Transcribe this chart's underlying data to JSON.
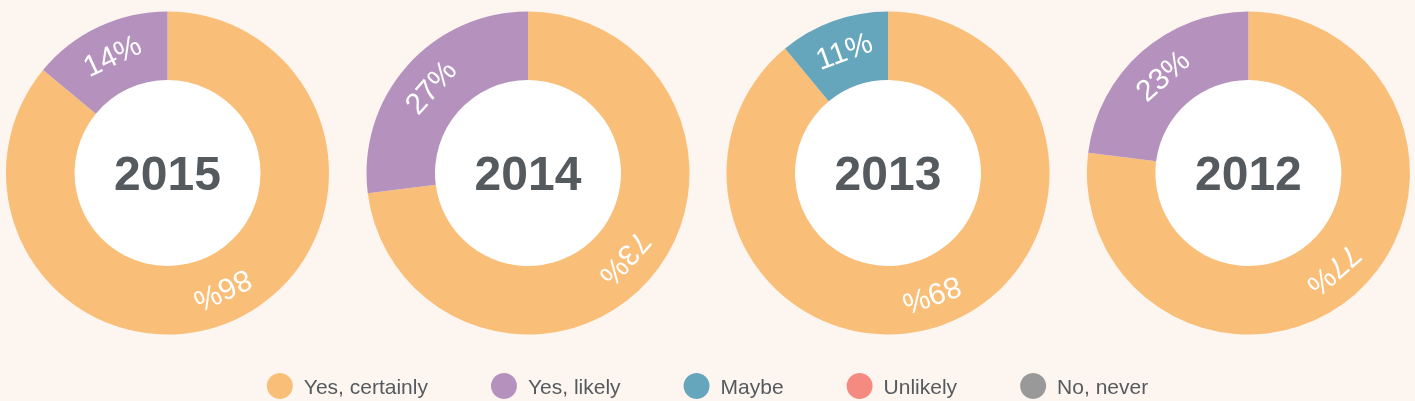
{
  "chart_data": [
    {
      "type": "donut",
      "title": "2015",
      "categories": [
        "Yes, certainly",
        "Yes, likely",
        "Maybe",
        "Unlikely",
        "No, never"
      ],
      "values": [
        86,
        14,
        0,
        0,
        0
      ],
      "colors": [
        "#f9be77",
        "#b592be",
        "#66a6bc",
        "#f48a80",
        "#999999"
      ],
      "value_labels": [
        "86%",
        "14%",
        null,
        null,
        null
      ],
      "legend": "bottom"
    },
    {
      "type": "donut",
      "title": "2014",
      "values": [
        73,
        27
      ],
      "colors": [
        "#f9be77",
        "#b592be"
      ],
      "value_labels": [
        "73%",
        "27%"
      ]
    },
    {
      "type": "donut",
      "title": "2013",
      "values": [
        89,
        11
      ],
      "colors": [
        "#f9be77",
        "#66a6bc"
      ],
      "value_labels": [
        "89%",
        "11%"
      ]
    },
    {
      "type": "donut",
      "title": "2012",
      "values": [
        77,
        23
      ],
      "colors": [
        "#f9be77",
        "#b592be"
      ],
      "value_labels": [
        "77%",
        "23%"
      ]
    }
  ]
}
